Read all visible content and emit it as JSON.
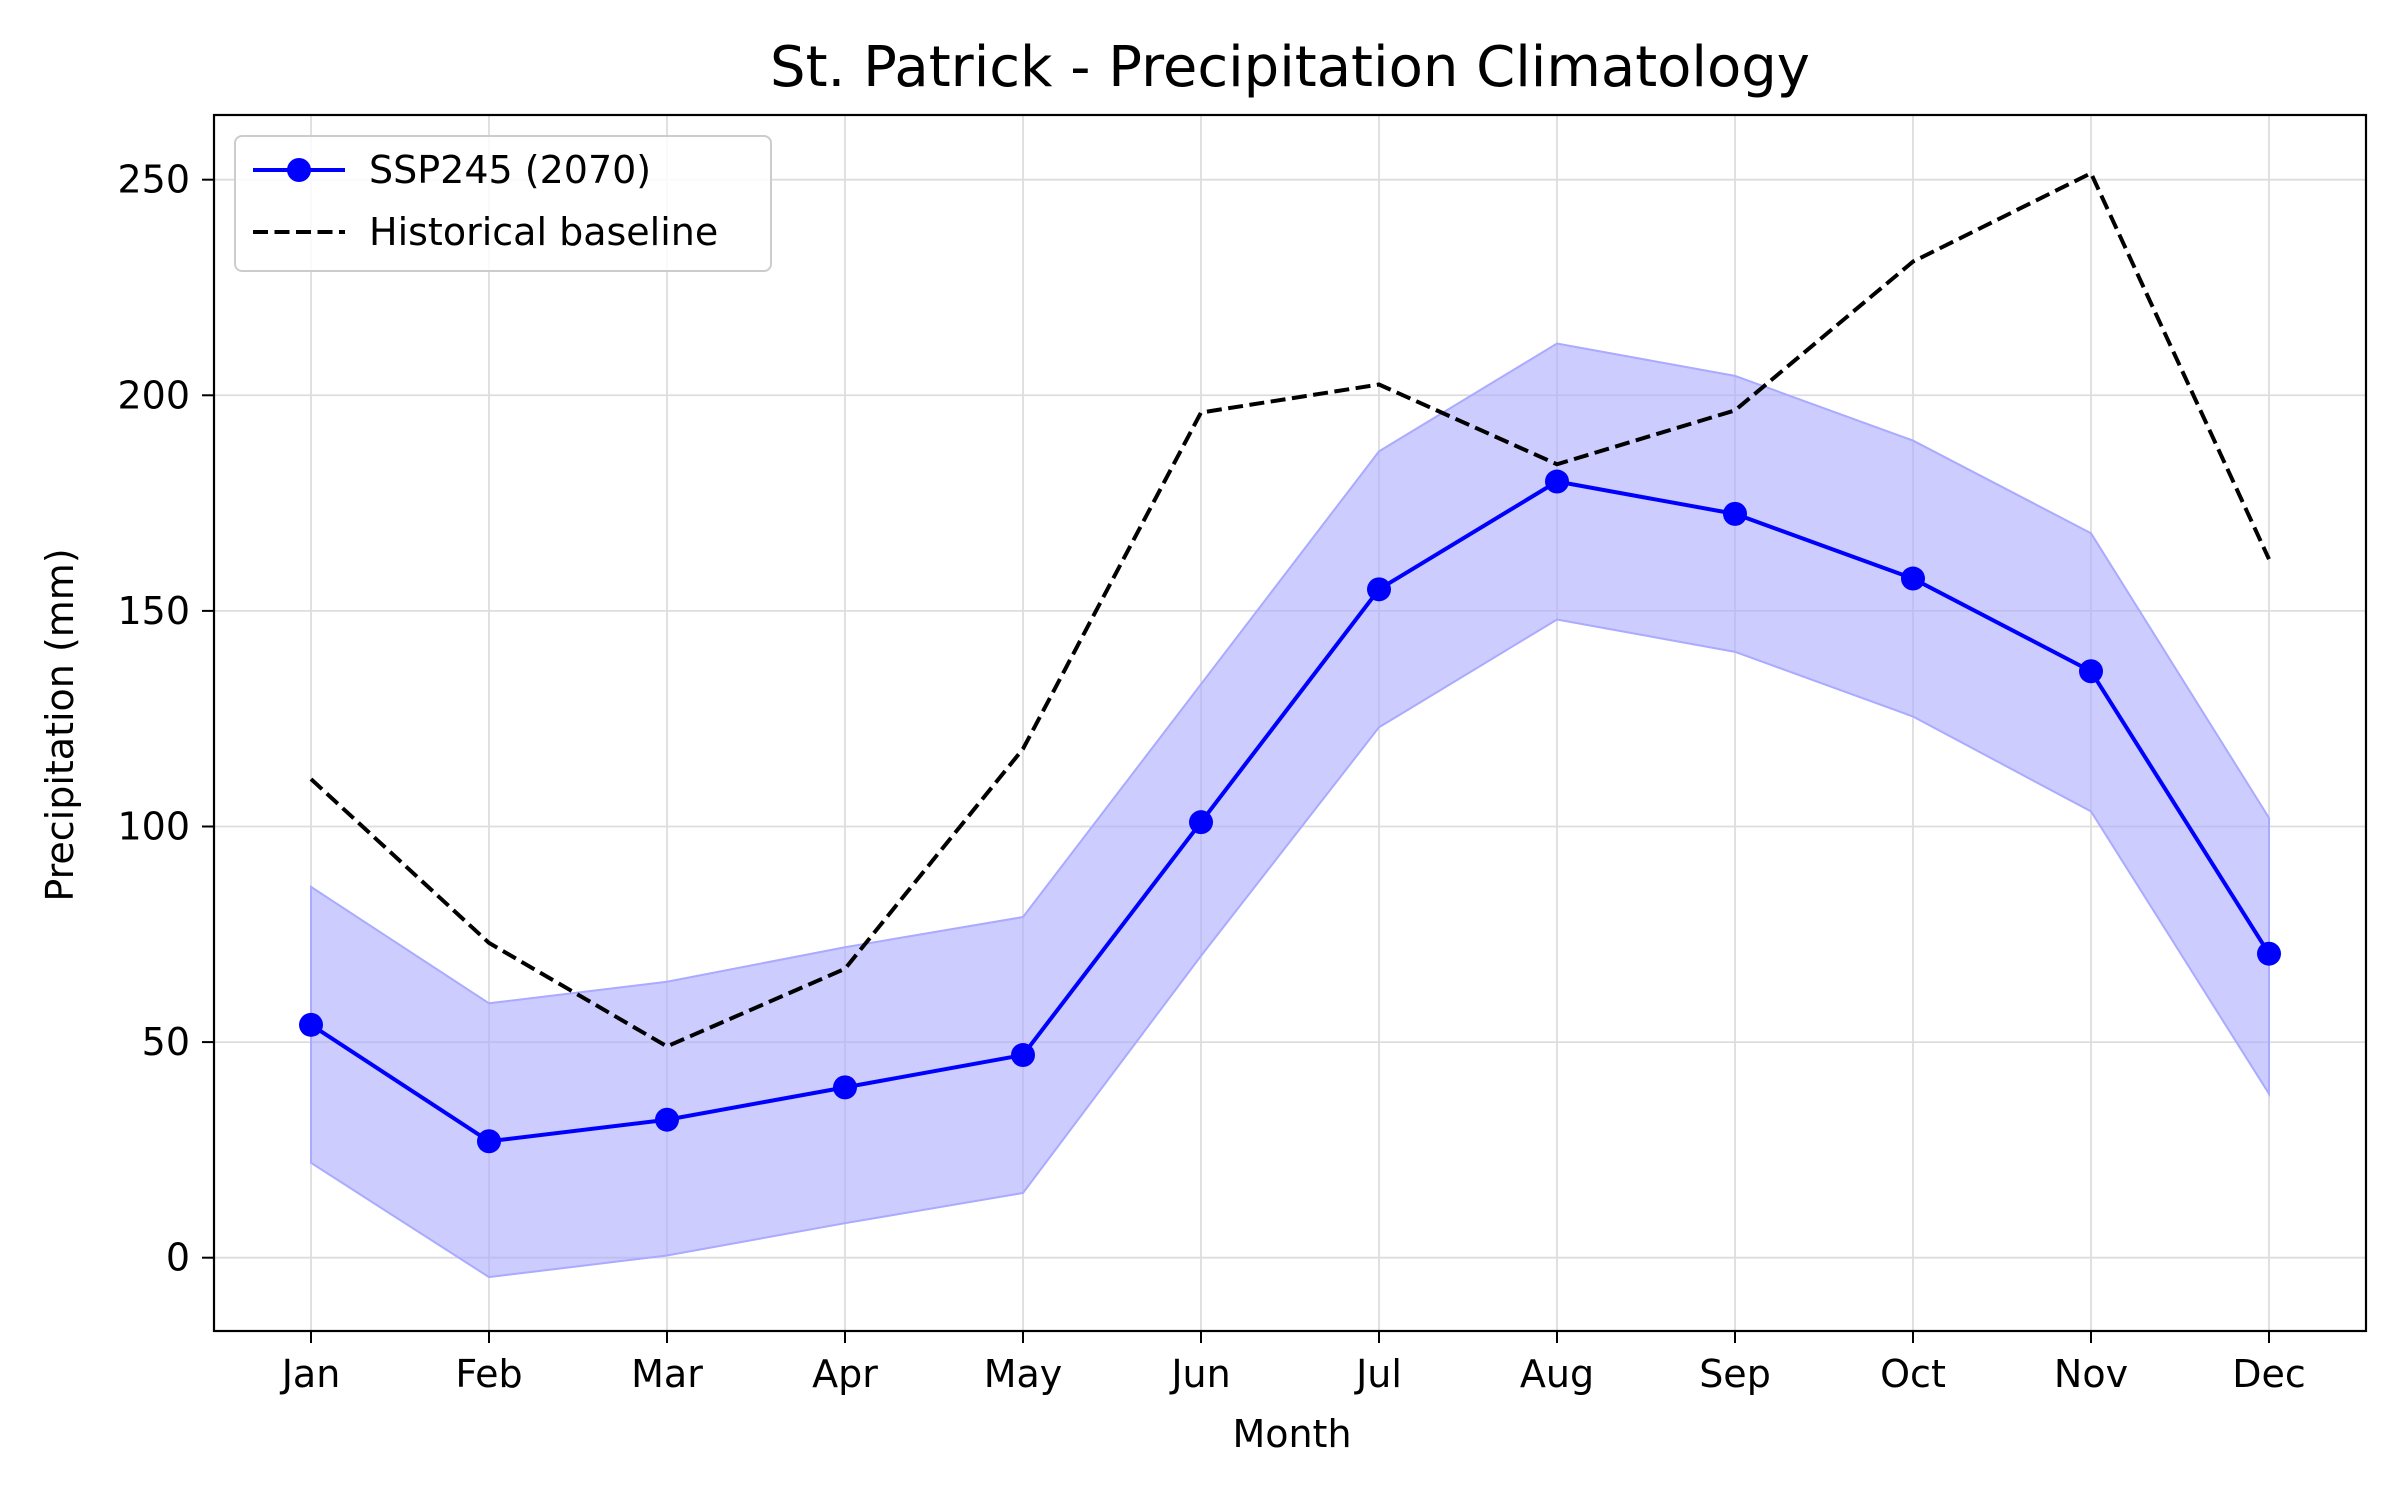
{
  "chart_data": {
    "type": "line",
    "title": "St. Patrick - Precipitation Climatology",
    "xlabel": "Month",
    "ylabel": "Precipitation (mm)",
    "categories": [
      "Jan",
      "Feb",
      "Mar",
      "Apr",
      "May",
      "Jun",
      "Jul",
      "Aug",
      "Sep",
      "Oct",
      "Nov",
      "Dec"
    ],
    "ylim": [
      -17,
      265
    ],
    "yticks": [
      0,
      50,
      100,
      150,
      200,
      250
    ],
    "grid": true,
    "legend_position": "top-left",
    "series": [
      {
        "name": "SSP245 (2070)",
        "style": "solid-line-with-markers",
        "color": "#0000ff",
        "values": [
          54,
          27,
          32,
          39.5,
          47,
          101,
          155,
          180,
          172.5,
          157.5,
          136,
          70.5
        ]
      },
      {
        "name": "Historical baseline",
        "style": "dashed",
        "color": "#000000",
        "values": [
          111,
          73,
          49,
          67,
          118,
          196,
          202.5,
          184,
          196.5,
          231,
          251.5,
          162
        ]
      }
    ],
    "band": {
      "color": "#aaaaff",
      "lower": [
        22,
        -4.5,
        0.5,
        8,
        15,
        70,
        123,
        148,
        140.5,
        125.5,
        103.5,
        38
      ],
      "upper": [
        86,
        59,
        64,
        72,
        79,
        133,
        187,
        212,
        204.5,
        189.5,
        168,
        102
      ]
    }
  }
}
